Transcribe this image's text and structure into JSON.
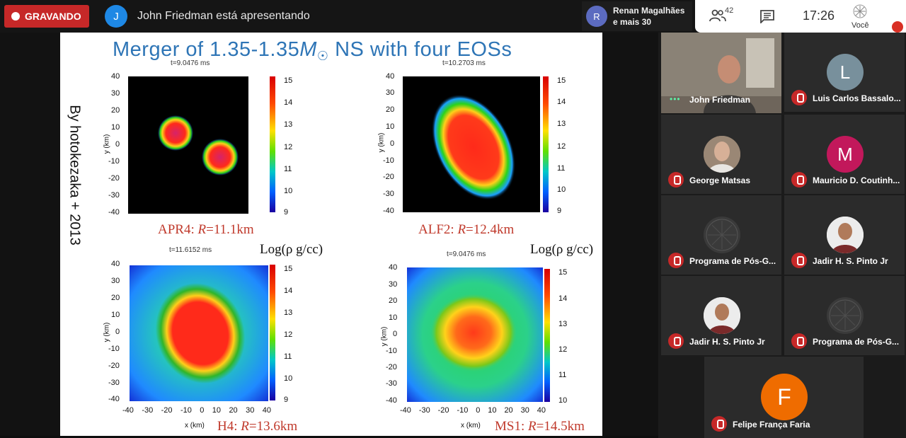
{
  "topbar": {
    "recording_label": "GRAVANDO",
    "presenter_initial": "J",
    "presenter_text": "John Friedman está apresentando",
    "others_initial": "R",
    "others_name": "Renan Magalhães",
    "others_more": "e mais 30",
    "participants_count": "42",
    "time": "17:26",
    "self_label": "Você"
  },
  "slide": {
    "title": "Merger of 1.35-1.35",
    "title_msun": "M",
    "title_rest": "NS with four EOSs",
    "side_text": "By hotokezaka + 2013",
    "log_label": "Log(ρ g/cc)",
    "x_label": "x (km)",
    "y_label": "y (km)",
    "plots": [
      {
        "time": "t=9.0476 ms",
        "caption_eos": "APR4: ",
        "caption_r": "R",
        "caption_val": "=11.1km",
        "cbar": [
          "15",
          "14",
          "13",
          "12",
          "11",
          "10",
          "9"
        ]
      },
      {
        "time": "t=10.2703 ms",
        "caption_eos": "ALF2: ",
        "caption_r": "R",
        "caption_val": "=12.4km",
        "cbar": [
          "15",
          "14",
          "13",
          "12",
          "11",
          "10",
          "9"
        ]
      },
      {
        "time": "t=11.6152 ms",
        "caption_eos": "H4: ",
        "caption_r": "R",
        "caption_val": "=13.6km",
        "cbar": [
          "15",
          "14",
          "13",
          "12",
          "11",
          "10",
          "9"
        ]
      },
      {
        "time": "t=9.0476 ms",
        "caption_eos": "MS1: ",
        "caption_r": "R",
        "caption_val": "=14.5km",
        "cbar": [
          "15",
          "14",
          "13",
          "12",
          "11",
          "10"
        ]
      }
    ],
    "y_ticks": [
      "40",
      "30",
      "20",
      "10",
      "0",
      "-10",
      "-20",
      "-30",
      "-40"
    ],
    "x_ticks": [
      "-40",
      "-30",
      "-20",
      "-10",
      "0",
      "10",
      "20",
      "30",
      "40"
    ]
  },
  "participants": [
    {
      "name": "John Friedman",
      "type": "video"
    },
    {
      "name": "Luis Carlos Bassalo...",
      "initial": "L",
      "color": "#78909c"
    },
    {
      "name": "George Matsas",
      "type": "photo"
    },
    {
      "name": "Mauricio D. Coutinh...",
      "initial": "M",
      "color": "#c2185b"
    },
    {
      "name": "Programa de Pós-G...",
      "type": "logo"
    },
    {
      "name": "Jadir H. S. Pinto Jr",
      "type": "photo"
    },
    {
      "name": "Jadir H. S. Pinto Jr",
      "type": "photo"
    },
    {
      "name": "Programa de Pós-G...",
      "type": "logo"
    },
    {
      "name": "Felipe França Faria",
      "initial": "F",
      "color": "#ef6c00"
    }
  ]
}
